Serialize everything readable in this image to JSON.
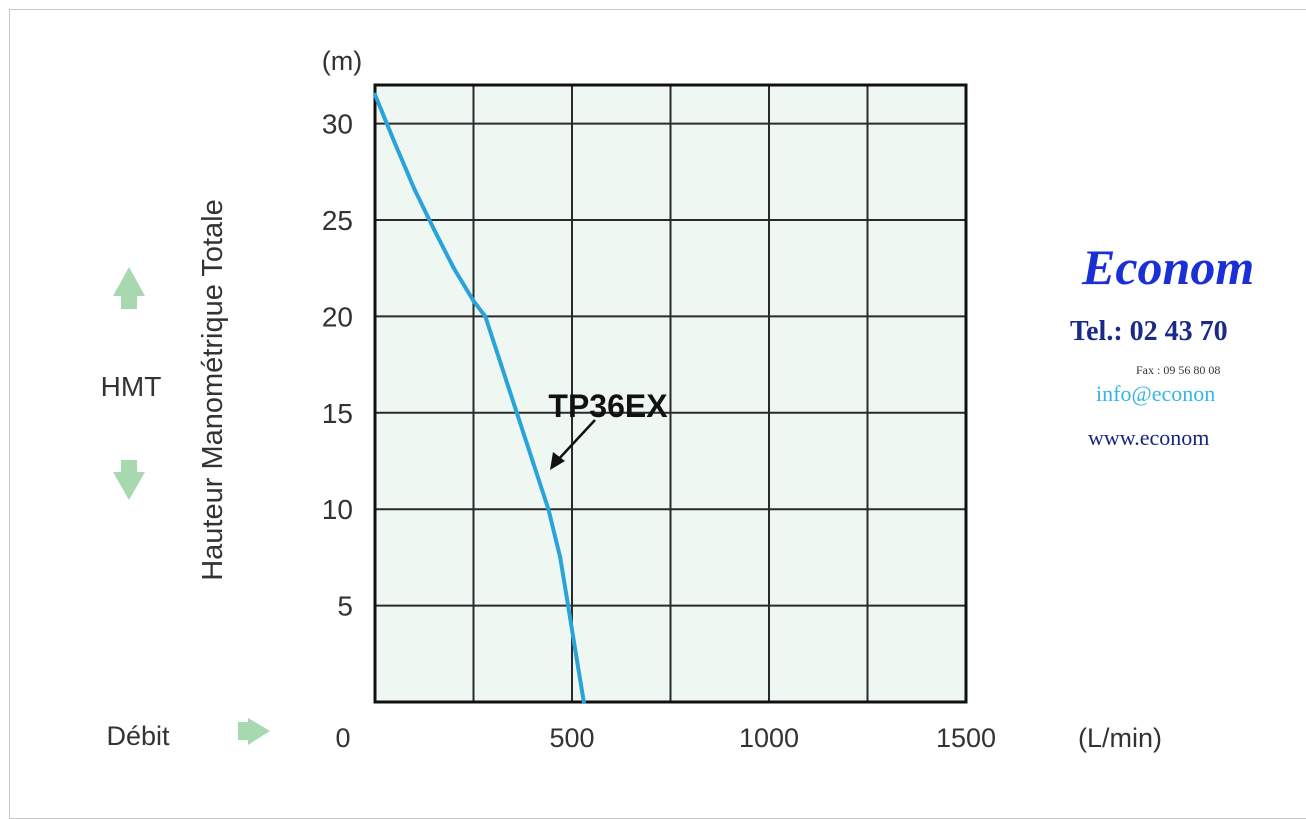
{
  "chart_data": {
    "type": "line",
    "series": [
      {
        "name": "TP36EX",
        "x": [
          0,
          50,
          100,
          150,
          200,
          250,
          280,
          320,
          360,
          400,
          440,
          470,
          490,
          510,
          530
        ],
        "y": [
          31.5,
          29.0,
          26.6,
          24.5,
          22.5,
          20.8,
          20.0,
          17.5,
          15.0,
          12.5,
          10.0,
          7.5,
          5.0,
          2.5,
          0
        ]
      }
    ],
    "x_ticks": [
      "0",
      "500",
      "1000",
      "1500"
    ],
    "y_ticks": [
      "5",
      "10",
      "15",
      "20",
      "25",
      "30"
    ],
    "x_zero_label": "0",
    "xlim": [
      0,
      1500
    ],
    "ylim": [
      0,
      32
    ],
    "x_unit": "(L/min)",
    "y_unit": "(m)",
    "ylabel": "Hauteur Manométrique Totale",
    "hmt_label": "HMT",
    "debit_label": "Débit",
    "annotation": "TP36EX",
    "grid": true,
    "line_color": "#2aa4d8",
    "plot_bg": "#eef7f1",
    "arrow_color": "#a8d8b0"
  },
  "brand": {
    "name": "Econom",
    "tel": "Tel.: 02 43 70",
    "fax": "Fax :  09 56 80 08",
    "email": "info@econon",
    "web": "www.econom"
  }
}
